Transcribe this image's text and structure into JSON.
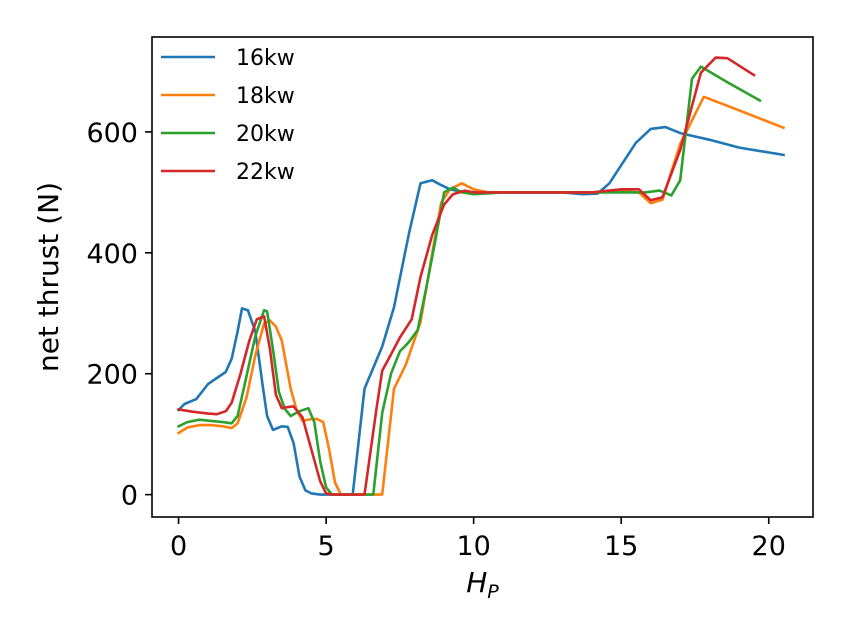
{
  "chart_data": {
    "type": "line",
    "xlabel_main": "H",
    "xlabel_sub": "P",
    "ylabel": "net thrust (N)",
    "xlim": [
      -0.9,
      21.5
    ],
    "ylim": [
      -37,
      757
    ],
    "xticks": [
      0,
      5,
      10,
      15,
      20
    ],
    "yticks": [
      0,
      200,
      400,
      600
    ],
    "xtick_labels": [
      "0",
      "5",
      "10",
      "15",
      "20"
    ],
    "ytick_labels": [
      "0",
      "200",
      "400",
      "600"
    ],
    "grid": false,
    "legend_position": "top-left",
    "series": [
      {
        "name": "16kw",
        "color": "#1f77b4",
        "points": [
          [
            0,
            140
          ],
          [
            0.2,
            150
          ],
          [
            0.6,
            158
          ],
          [
            1,
            183
          ],
          [
            1.3,
            193
          ],
          [
            1.6,
            203
          ],
          [
            1.8,
            225
          ],
          [
            2,
            270
          ],
          [
            2.15,
            308
          ],
          [
            2.35,
            305
          ],
          [
            2.6,
            270
          ],
          [
            2.85,
            180
          ],
          [
            3,
            130
          ],
          [
            3.2,
            107
          ],
          [
            3.5,
            113
          ],
          [
            3.7,
            112
          ],
          [
            3.9,
            85
          ],
          [
            4.1,
            30
          ],
          [
            4.3,
            7
          ],
          [
            4.5,
            2
          ],
          [
            4.8,
            0
          ],
          [
            5.9,
            0
          ],
          [
            6.3,
            175
          ],
          [
            6.9,
            245
          ],
          [
            7.3,
            310
          ],
          [
            7.8,
            430
          ],
          [
            8.2,
            515
          ],
          [
            8.6,
            520
          ],
          [
            8.9,
            512
          ],
          [
            9.2,
            505
          ],
          [
            9.5,
            502
          ],
          [
            10,
            500
          ],
          [
            11,
            500
          ],
          [
            12,
            500
          ],
          [
            13,
            500
          ],
          [
            13.7,
            497
          ],
          [
            14.2,
            498
          ],
          [
            14.6,
            515
          ],
          [
            15,
            545
          ],
          [
            15.5,
            582
          ],
          [
            16,
            605
          ],
          [
            16.5,
            608
          ],
          [
            17,
            598
          ],
          [
            18,
            587
          ],
          [
            19,
            574
          ],
          [
            20.5,
            562
          ]
        ]
      },
      {
        "name": "18kw",
        "color": "#ff7f0e",
        "points": [
          [
            0,
            102
          ],
          [
            0.3,
            111
          ],
          [
            0.7,
            115
          ],
          [
            1.1,
            115
          ],
          [
            1.5,
            113
          ],
          [
            1.8,
            110
          ],
          [
            2,
            118
          ],
          [
            2.3,
            160
          ],
          [
            2.6,
            230
          ],
          [
            2.9,
            283
          ],
          [
            3.1,
            288
          ],
          [
            3.3,
            278
          ],
          [
            3.5,
            255
          ],
          [
            3.8,
            175
          ],
          [
            4,
            140
          ],
          [
            4.2,
            122
          ],
          [
            4.5,
            125
          ],
          [
            4.7,
            125
          ],
          [
            4.9,
            120
          ],
          [
            5.1,
            75
          ],
          [
            5.3,
            20
          ],
          [
            5.5,
            0
          ],
          [
            6.9,
            0
          ],
          [
            7.3,
            175
          ],
          [
            7.7,
            215
          ],
          [
            8.2,
            285
          ],
          [
            8.6,
            400
          ],
          [
            8.9,
            483
          ],
          [
            9.2,
            505
          ],
          [
            9.6,
            515
          ],
          [
            10,
            505
          ],
          [
            10.5,
            500
          ],
          [
            11,
            500
          ],
          [
            12,
            500
          ],
          [
            13,
            500
          ],
          [
            14,
            500
          ],
          [
            15,
            502
          ],
          [
            15.6,
            500
          ],
          [
            16,
            482
          ],
          [
            16.4,
            488
          ],
          [
            17,
            580
          ],
          [
            17.8,
            658
          ],
          [
            18.5,
            645
          ],
          [
            19.5,
            626
          ],
          [
            20.5,
            607
          ]
        ]
      },
      {
        "name": "20kw",
        "color": "#2ca02c",
        "points": [
          [
            0,
            113
          ],
          [
            0.3,
            120
          ],
          [
            0.7,
            124
          ],
          [
            1.1,
            122
          ],
          [
            1.5,
            120
          ],
          [
            1.8,
            118
          ],
          [
            2,
            130
          ],
          [
            2.3,
            195
          ],
          [
            2.6,
            262
          ],
          [
            2.9,
            305
          ],
          [
            3,
            303
          ],
          [
            3.2,
            240
          ],
          [
            3.4,
            170
          ],
          [
            3.6,
            142
          ],
          [
            3.8,
            130
          ],
          [
            4.1,
            138
          ],
          [
            4.4,
            143
          ],
          [
            4.6,
            120
          ],
          [
            4.8,
            55
          ],
          [
            5,
            12
          ],
          [
            5.2,
            0
          ],
          [
            6.6,
            0
          ],
          [
            6.9,
            135
          ],
          [
            7.2,
            200
          ],
          [
            7.5,
            237
          ],
          [
            7.8,
            252
          ],
          [
            8.1,
            272
          ],
          [
            8.4,
            343
          ],
          [
            8.7,
            420
          ],
          [
            9,
            500
          ],
          [
            9.3,
            508
          ],
          [
            9.6,
            500
          ],
          [
            10,
            497
          ],
          [
            11,
            500
          ],
          [
            12,
            500
          ],
          [
            13,
            500
          ],
          [
            14,
            500
          ],
          [
            15,
            500
          ],
          [
            15.8,
            500
          ],
          [
            16.3,
            503
          ],
          [
            16.7,
            495
          ],
          [
            17,
            520
          ],
          [
            17.4,
            688
          ],
          [
            17.7,
            708
          ],
          [
            18.6,
            682
          ],
          [
            19.7,
            652
          ]
        ]
      },
      {
        "name": "22kw",
        "color": "#d62728",
        "points": [
          [
            0,
            141
          ],
          [
            0.5,
            137
          ],
          [
            1,
            134
          ],
          [
            1.3,
            133
          ],
          [
            1.6,
            138
          ],
          [
            1.8,
            152
          ],
          [
            2.1,
            200
          ],
          [
            2.4,
            255
          ],
          [
            2.65,
            290
          ],
          [
            2.9,
            295
          ],
          [
            3.1,
            240
          ],
          [
            3.3,
            165
          ],
          [
            3.5,
            143
          ],
          [
            3.7,
            145
          ],
          [
            3.9,
            146
          ],
          [
            4.2,
            128
          ],
          [
            4.5,
            75
          ],
          [
            4.8,
            22
          ],
          [
            5,
            2
          ],
          [
            5.2,
            0
          ],
          [
            6.3,
            0
          ],
          [
            6.7,
            140
          ],
          [
            6.9,
            205
          ],
          [
            7.2,
            232
          ],
          [
            7.5,
            260
          ],
          [
            7.9,
            290
          ],
          [
            8.2,
            360
          ],
          [
            8.6,
            430
          ],
          [
            9,
            480
          ],
          [
            9.3,
            497
          ],
          [
            9.7,
            503
          ],
          [
            10,
            500
          ],
          [
            11,
            500
          ],
          [
            12,
            500
          ],
          [
            13,
            500
          ],
          [
            14,
            500
          ],
          [
            15,
            505
          ],
          [
            15.6,
            505
          ],
          [
            16,
            487
          ],
          [
            16.4,
            492
          ],
          [
            17,
            570
          ],
          [
            17.7,
            698
          ],
          [
            18.2,
            723
          ],
          [
            18.6,
            722
          ],
          [
            19.5,
            694
          ]
        ]
      }
    ]
  }
}
